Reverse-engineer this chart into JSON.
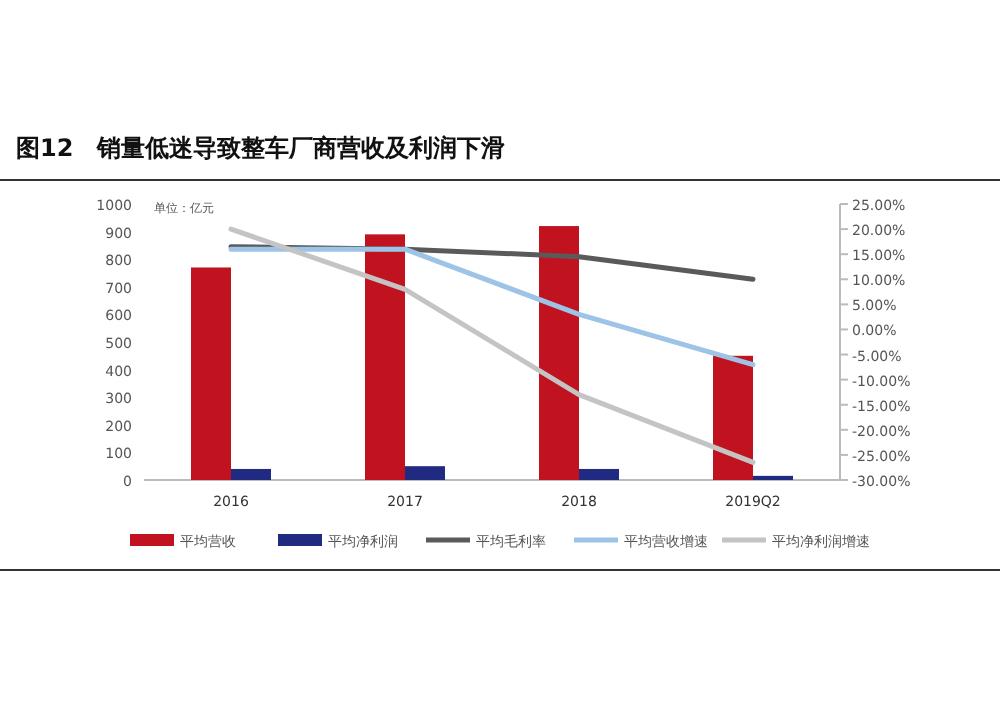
{
  "chart_data": {
    "type": "bar",
    "title": "图12　销量低迷导致整车厂商营收及利润下滑",
    "annotations": [
      "单位：亿元"
    ],
    "categories": [
      "2016",
      "2017",
      "2018",
      "2019Q2"
    ],
    "series": [
      {
        "name": "平均营收",
        "color": "#c0121f",
        "values": [
          770,
          890,
          920,
          450
        ]
      },
      {
        "name": "平均净利润",
        "color": "#1f2a80",
        "values": [
          40,
          50,
          40,
          15
        ]
      },
      {
        "name": "平均毛利率",
        "type": "line",
        "axis": "y2",
        "color": "#5a5a5a",
        "values": [
          16.5,
          16,
          14.5,
          10
        ]
      },
      {
        "name": "平均营收增速",
        "type": "line",
        "axis": "y2",
        "color": "#9dc3e6",
        "values": [
          16,
          16,
          3,
          -7
        ]
      },
      {
        "name": "平均净利润增速",
        "type": "line",
        "axis": "y2",
        "color": "#c4c4c4",
        "values": [
          20,
          8,
          -13,
          -26.5
        ]
      }
    ],
    "ylim": [
      0,
      1000
    ],
    "yticks": [
      0,
      100,
      200,
      300,
      400,
      500,
      600,
      700,
      800,
      900,
      1000
    ],
    "y2lim": [
      -30,
      25
    ],
    "y2ticks": [
      {
        "value": 25,
        "label": "25.00%"
      },
      {
        "value": 20,
        "label": "20.00%"
      },
      {
        "value": 15,
        "label": "15.00%"
      },
      {
        "value": 10,
        "label": "10.00%"
      },
      {
        "value": 5,
        "label": "5.00%"
      },
      {
        "value": 0,
        "label": "0.00%"
      },
      {
        "value": -5,
        "label": "-5.00%"
      },
      {
        "value": -10,
        "label": "-10.00%"
      },
      {
        "value": -15,
        "label": "-15.00%"
      },
      {
        "value": -20,
        "label": "-20.00%"
      },
      {
        "value": -25,
        "label": "-25.00%"
      },
      {
        "value": -30,
        "label": "-30.00%"
      }
    ],
    "legend": "bottom"
  }
}
